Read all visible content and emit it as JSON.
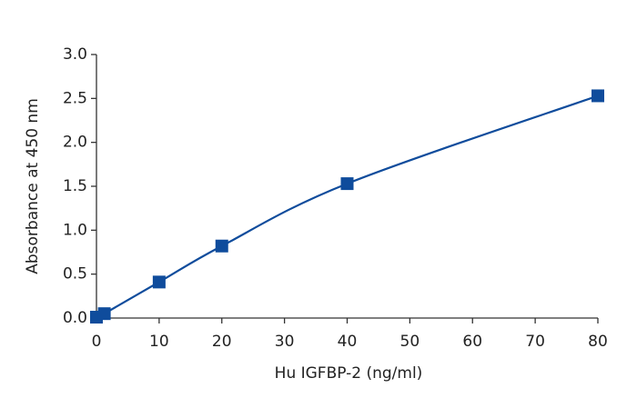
{
  "chart_data": {
    "type": "line",
    "x_label": "Hu IGFBP-2 (ng/ml)",
    "y_label": "Absorbance at 450 nm",
    "x": [
      0,
      1.25,
      10,
      20,
      40,
      80
    ],
    "series": [
      {
        "color": "#0f4c9c",
        "values": [
          0.01,
          0.05,
          0.41,
          0.82,
          1.53,
          2.53
        ]
      }
    ],
    "xlim": [
      0,
      80
    ],
    "xticks": [
      0,
      10,
      20,
      30,
      40,
      50,
      60,
      70,
      80
    ],
    "ylim": [
      0,
      3
    ],
    "yticks": [
      {
        "value": 0,
        "label": "0.0"
      },
      0.5,
      {
        "value": 1,
        "label": "1.0"
      },
      1.5,
      {
        "value": 2,
        "label": "2.0"
      },
      2.5,
      {
        "value": 3,
        "label": "3.0"
      }
    ],
    "grid": false,
    "smooth": true,
    "markers": "square"
  }
}
